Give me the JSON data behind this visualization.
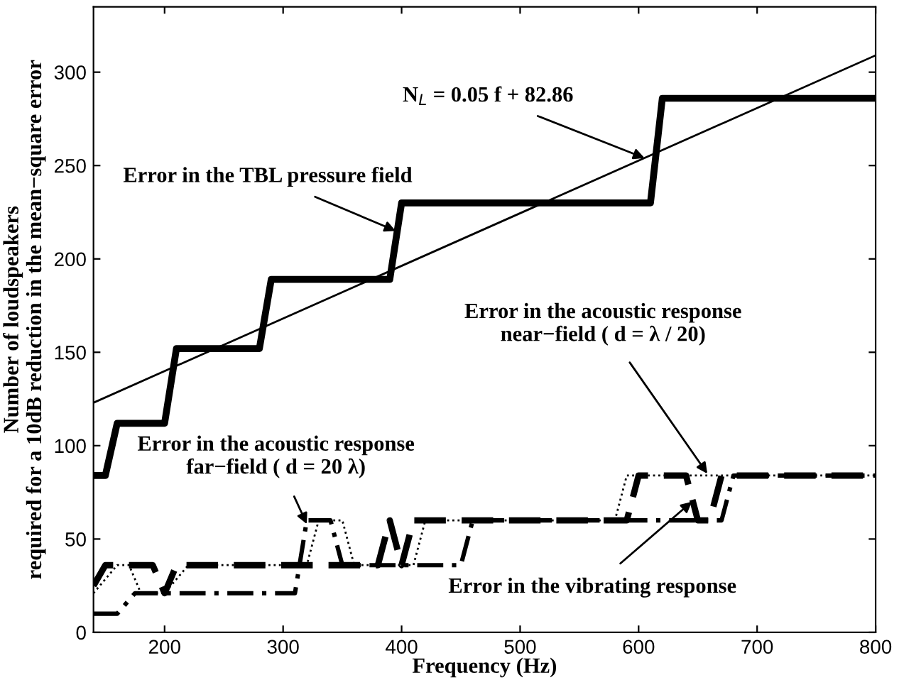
{
  "chart_data": {
    "type": "line",
    "xlabel": "Frequency (Hz)",
    "ylabel": "Number of loudspeakers\nrequired for a 10dB reduction in the mean−square error",
    "xlim": [
      140,
      800
    ],
    "xticks": [
      200,
      300,
      400,
      500,
      600,
      700,
      800
    ],
    "ylim": [
      0,
      335
    ],
    "yticks": [
      0,
      50,
      100,
      150,
      200,
      250,
      300
    ],
    "grid": false,
    "marker": "none",
    "series": [
      {
        "color": "#000000",
        "line_style": "solid",
        "x": [
          140,
          150,
          160,
          200,
          210,
          280,
          290,
          390,
          400,
          610,
          620,
          800
        ],
        "values": [
          84,
          84,
          112,
          112,
          152,
          152,
          189,
          189,
          230,
          230,
          286,
          286
        ]
      },
      {
        "color": "#000000",
        "line_style": "solid",
        "x": [
          140,
          800
        ],
        "values": [
          123,
          309
        ]
      },
      {
        "color": "#000000",
        "line_style": "dashed",
        "x": [
          140,
          150,
          190,
          200,
          210,
          380,
          390,
          400,
          410,
          590,
          600,
          640,
          650,
          660,
          670,
          800
        ],
        "values": [
          25,
          36,
          36,
          21,
          36,
          36,
          60,
          36,
          60,
          60,
          84,
          84,
          60,
          60,
          84,
          84
        ]
      },
      {
        "color": "#000000",
        "line_style": "dashdot",
        "x": [
          140,
          160,
          175,
          310,
          320,
          340,
          350,
          450,
          460,
          670,
          680,
          800
        ],
        "values": [
          10,
          10,
          21,
          21,
          60,
          60,
          36,
          36,
          60,
          60,
          84,
          84
        ]
      },
      {
        "color": "#000000",
        "line_style": "dotted",
        "x": [
          140,
          160,
          170,
          180,
          200,
          220,
          320,
          330,
          350,
          360,
          410,
          420,
          580,
          590,
          800
        ],
        "values": [
          21,
          36,
          36,
          21,
          21,
          36,
          36,
          60,
          60,
          36,
          36,
          60,
          60,
          84,
          84
        ]
      }
    ],
    "annotations": [
      {
        "text": "Error in the TBL pressure field",
        "x": 395,
        "y": 215
      },
      {
        "text": "N$_{L}$ = 0.05 f + 82.86",
        "x": 605,
        "y": 254
      },
      {
        "text": "Error in the acoustic response\nfar−field ( d = 20 λ)",
        "x": 320,
        "y": 58
      },
      {
        "text": "Error in the acoustic response\nnear−field ( d = λ / 20)",
        "x": 658,
        "y": 85
      },
      {
        "text": "Error in the vibrating response",
        "x": 645,
        "y": 70
      }
    ]
  }
}
